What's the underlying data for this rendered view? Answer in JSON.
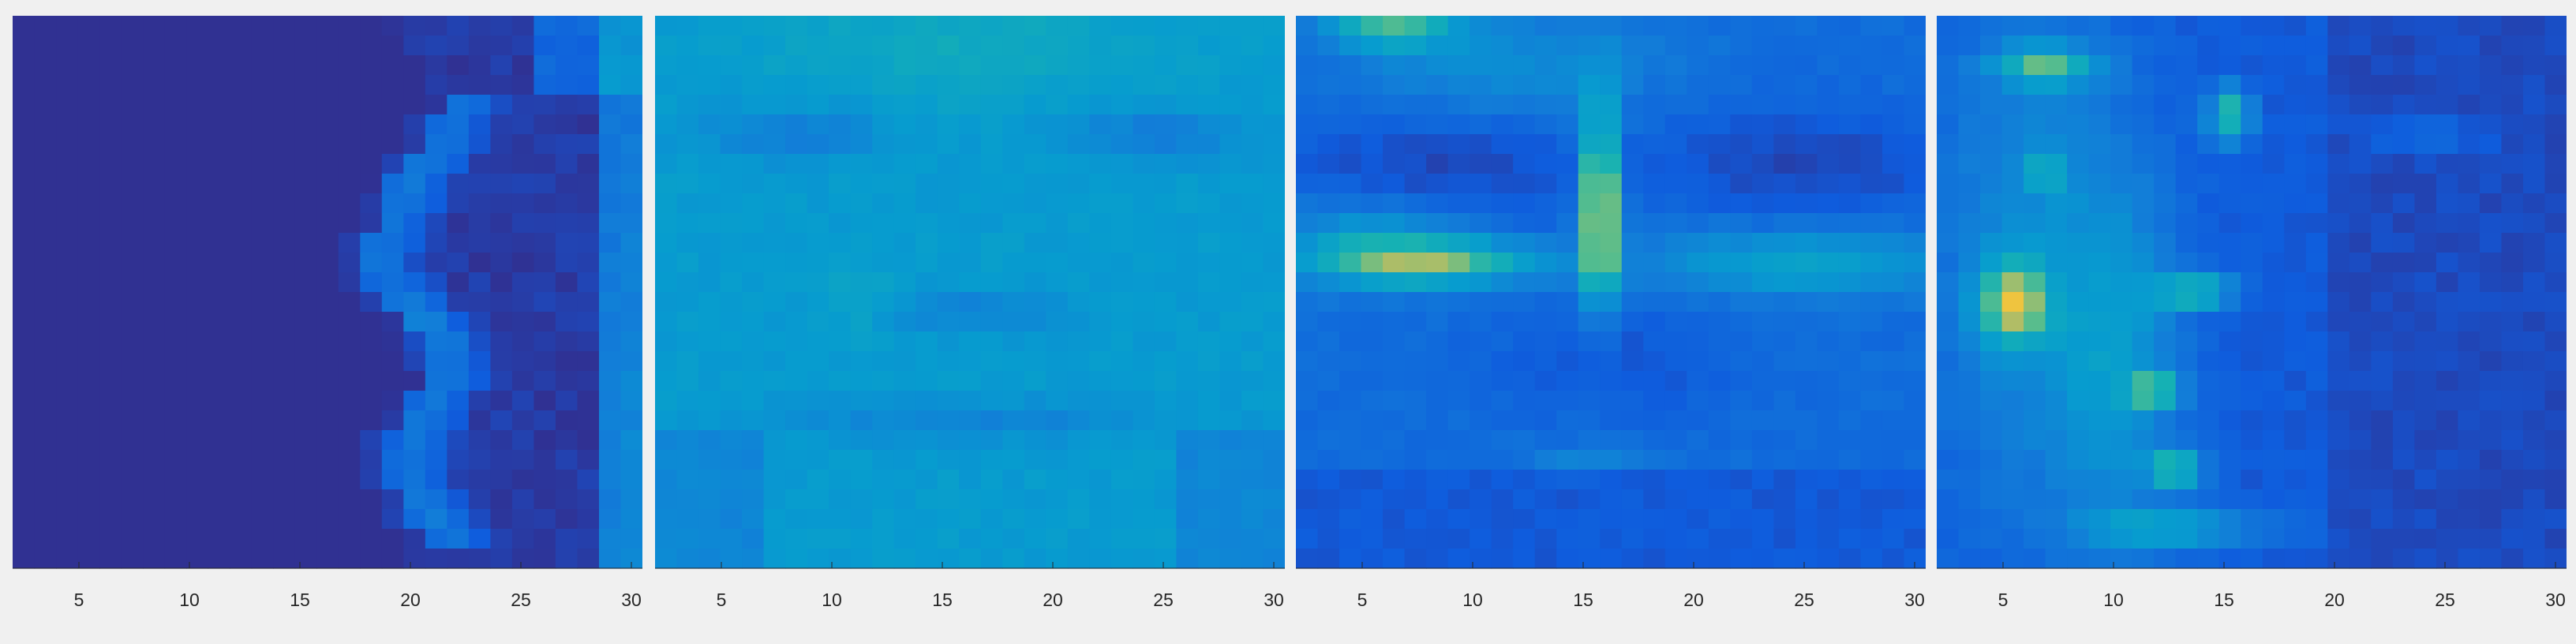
{
  "chart_data": [
    {
      "type": "heatmap",
      "x_tick_labels": [
        "5",
        "10",
        "15",
        "20",
        "25",
        "30"
      ],
      "x_ticks": [
        5,
        10,
        15,
        20,
        25,
        30
      ],
      "xlim": [
        2,
        30.5
      ],
      "colormap": "parula",
      "description_level": "profile face, mostly dark background with bright contour on right side"
    },
    {
      "type": "heatmap",
      "x_tick_labels": [
        "5",
        "10",
        "15",
        "20",
        "25",
        "30"
      ],
      "x_ticks": [
        5,
        10,
        15,
        20,
        25,
        30
      ],
      "xlim": [
        2,
        30.5
      ],
      "colormap": "parula",
      "description_level": "frontal face with uniform medium activation"
    },
    {
      "type": "heatmap",
      "x_tick_labels": [
        "5",
        "10",
        "15",
        "20",
        "25",
        "30"
      ],
      "x_ticks": [
        5,
        10,
        15,
        20,
        25,
        30
      ],
      "xlim": [
        2,
        30.5
      ],
      "colormap": "parula",
      "description_level": "frontal face with bright nose ridge and cheek lines"
    },
    {
      "type": "heatmap",
      "x_tick_labels": [
        "5",
        "10",
        "15",
        "20",
        "25",
        "30"
      ],
      "x_ticks": [
        5,
        10,
        15,
        20,
        25,
        30
      ],
      "xlim": [
        2,
        30.5
      ],
      "colormap": "parula",
      "description_level": "face with bright spots on left half"
    }
  ]
}
